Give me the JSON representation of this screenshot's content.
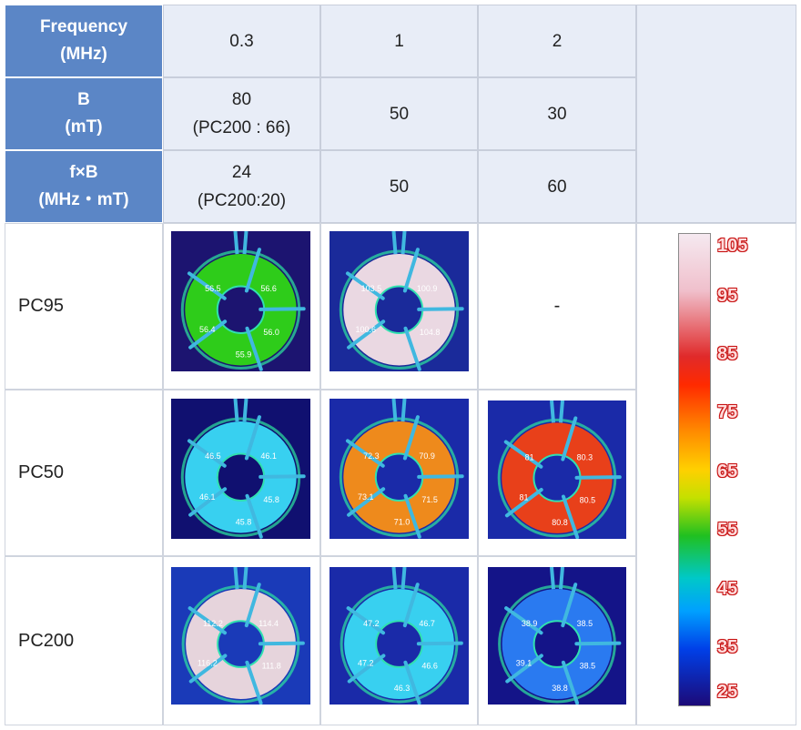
{
  "header": {
    "frequency_label": "Frequency\n(MHz)",
    "frequencies": [
      "0.3",
      "1",
      "2"
    ],
    "b_label": "B\n(mT)",
    "b_values": [
      "80\n(PC200 : 66)",
      "50",
      "30"
    ],
    "fb_label": "f×B\n(MHz・mT)",
    "fb_values": [
      "24\n(PC200:20)",
      "50",
      "60"
    ]
  },
  "rows": [
    {
      "label": "PC95",
      "missing_text": "-"
    },
    {
      "label": "PC50"
    },
    {
      "label": "PC200"
    }
  ],
  "thermograms": {
    "pc95_03": {
      "readings": [
        "56.5",
        "56.6",
        "56.4",
        "56.0",
        "55.9"
      ],
      "ring_color": "#2ecc1a",
      "bg": "#1c1470"
    },
    "pc95_1": {
      "readings": [
        "103.5",
        "100.9",
        "100.6",
        "104.8"
      ],
      "ring_color": "#ead8e2",
      "bg": "#1a2a9a"
    },
    "pc50_03": {
      "readings": [
        "46.5",
        "46.1",
        "46.1",
        "45.8",
        "45.8"
      ],
      "ring_color": "#38d0f0",
      "bg": "#101070"
    },
    "pc50_1": {
      "readings": [
        "72.3",
        "70.9",
        "73.1",
        "71.5",
        "71.0"
      ],
      "ring_color": "#ee8a1c",
      "bg": "#1a2aa8"
    },
    "pc50_2": {
      "readings": [
        "81",
        "80.3",
        "81",
        "80.5",
        "80.8"
      ],
      "ring_color": "#e8401a",
      "bg": "#1a2aa8"
    },
    "pc200_03": {
      "readings": [
        "112.2",
        "114.4",
        "116.2",
        "111.8"
      ],
      "ring_color": "#e6d4dc",
      "bg": "#1a3ab8"
    },
    "pc200_1": {
      "readings": [
        "47.2",
        "46.7",
        "47.2",
        "46.6",
        "46.3"
      ],
      "ring_color": "#38d0f0",
      "bg": "#1a2aa8"
    },
    "pc200_2": {
      "readings": [
        "38.9",
        "38.5",
        "39.1",
        "38.5",
        "38.8"
      ],
      "ring_color": "#2a7af0",
      "bg": "#141488"
    }
  },
  "colorbar": {
    "ticks": [
      "105",
      "95",
      "85",
      "75",
      "65",
      "55",
      "45",
      "35",
      "25"
    ]
  }
}
